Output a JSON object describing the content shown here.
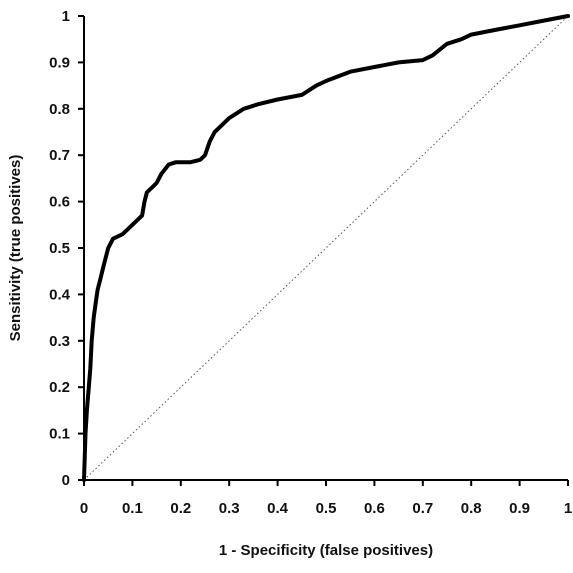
{
  "chart_data": {
    "type": "line",
    "title": "",
    "xlabel": "1 - Specificity (false positives)",
    "ylabel": "Sensitivity (true positives)",
    "xlim": [
      0,
      1
    ],
    "ylim": [
      0,
      1
    ],
    "x_ticks": [
      "0",
      "0.1",
      "0.2",
      "0.3",
      "0.4",
      "0.5",
      "0.6",
      "0.7",
      "0.8",
      "0.9",
      "1"
    ],
    "y_ticks": [
      "0",
      "0.1",
      "0.2",
      "0.3",
      "0.4",
      "0.5",
      "0.6",
      "0.7",
      "0.8",
      "0.9",
      "1"
    ],
    "grid": false,
    "legend": "none",
    "series": [
      {
        "style": "solid-thick",
        "color": "#000000",
        "x": [
          0,
          0.003,
          0.006,
          0.01,
          0.013,
          0.016,
          0.02,
          0.024,
          0.028,
          0.033,
          0.04,
          0.045,
          0.05,
          0.055,
          0.06,
          0.07,
          0.08,
          0.09,
          0.1,
          0.11,
          0.12,
          0.125,
          0.13,
          0.14,
          0.15,
          0.16,
          0.175,
          0.19,
          0.2,
          0.22,
          0.24,
          0.25,
          0.26,
          0.27,
          0.28,
          0.29,
          0.3,
          0.33,
          0.36,
          0.4,
          0.45,
          0.48,
          0.5,
          0.55,
          0.6,
          0.65,
          0.7,
          0.72,
          0.75,
          0.78,
          0.8,
          0.85,
          0.9,
          0.95,
          1.0
        ],
        "y": [
          0,
          0.1,
          0.15,
          0.2,
          0.24,
          0.3,
          0.35,
          0.38,
          0.41,
          0.43,
          0.46,
          0.48,
          0.5,
          0.51,
          0.52,
          0.525,
          0.53,
          0.54,
          0.55,
          0.56,
          0.57,
          0.6,
          0.62,
          0.63,
          0.64,
          0.66,
          0.68,
          0.685,
          0.685,
          0.685,
          0.69,
          0.7,
          0.73,
          0.75,
          0.76,
          0.77,
          0.78,
          0.8,
          0.81,
          0.82,
          0.83,
          0.85,
          0.86,
          0.88,
          0.89,
          0.9,
          0.905,
          0.915,
          0.94,
          0.95,
          0.96,
          0.97,
          0.98,
          0.99,
          1.0
        ]
      },
      {
        "style": "dotted-diagonal",
        "color": "#444444",
        "x": [
          0,
          1
        ],
        "y": [
          0,
          1
        ]
      }
    ]
  }
}
